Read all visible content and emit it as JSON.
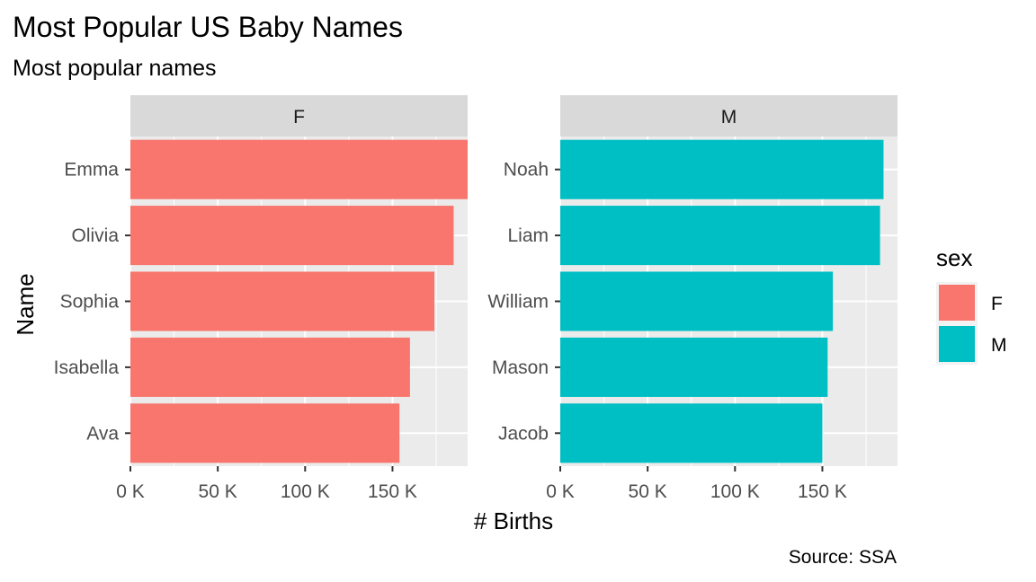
{
  "chart_data": {
    "type": "bar",
    "orientation": "horizontal",
    "title": "Most Popular US Baby Names",
    "subtitle": "Most popular names",
    "caption": "Source: SSA",
    "xlabel": "# Births",
    "ylabel": "Name",
    "xlim": [
      0,
      193000
    ],
    "x_ticks": [
      0,
      50000,
      100000,
      150000
    ],
    "x_tick_labels": [
      "0 K",
      "50 K",
      "100 K",
      "150 K"
    ],
    "grid": true,
    "legend": {
      "title": "sex",
      "position": "right",
      "entries": [
        {
          "label": "F",
          "color": "#F8766D"
        },
        {
          "label": "M",
          "color": "#00BFC4"
        }
      ]
    },
    "facets": [
      {
        "label": "F",
        "color": "#F8766D",
        "categories": [
          "Emma",
          "Olivia",
          "Sophia",
          "Isabella",
          "Ava"
        ],
        "values": [
          193000,
          185000,
          174000,
          160000,
          154000
        ]
      },
      {
        "label": "M",
        "color": "#00BFC4",
        "categories": [
          "Noah",
          "Liam",
          "William",
          "Mason",
          "Jacob"
        ],
        "values": [
          185000,
          183000,
          156000,
          153000,
          150000
        ]
      }
    ]
  }
}
